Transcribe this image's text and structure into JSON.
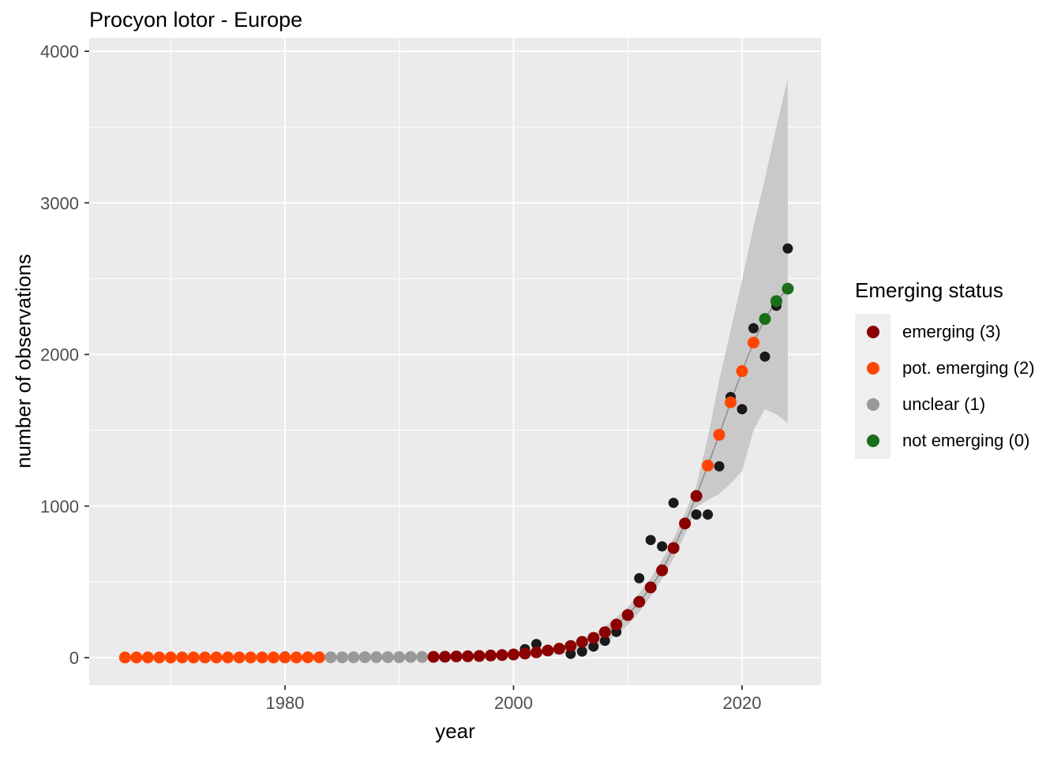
{
  "title": "Procyon lotor - Europe",
  "chart_data": {
    "type": "scatter",
    "title": "Procyon lotor - Europe",
    "xlabel": "year",
    "ylabel": "number of observations",
    "x_ticks": [
      1980,
      2000,
      2020
    ],
    "y_ticks": [
      0,
      1000,
      2000,
      3000,
      4000
    ],
    "x_domain": [
      1963,
      2027
    ],
    "y_domain": [
      -185,
      4090
    ],
    "grid": "white major and minor gridlines on gray panel",
    "panel_color": "#EBEBEB",
    "gridline_color": "#FFFFFF",
    "tick_label_color": "#4D4D4D",
    "legend": {
      "title": "Emerging status",
      "position": "right",
      "items": [
        {
          "label": "emerging (3)",
          "status": 3,
          "color": "#8B0000"
        },
        {
          "label": "pot. emerging (2)",
          "status": 2,
          "color": "#FF4500"
        },
        {
          "label": "unclear (1)",
          "status": 1,
          "color": "#999999"
        },
        {
          "label": "not emerging (0)",
          "status": 0,
          "color": "#1A6E1A"
        }
      ]
    },
    "status_colors": {
      "3": "#8B0000",
      "2": "#FF4500",
      "1": "#999999",
      "0": "#1A6E1A"
    },
    "series": {
      "fitted": {
        "name": "yearly fitted value colored by emerging status",
        "point_format": "[year, value, status]",
        "points": [
          [
            1966,
            1,
            2
          ],
          [
            1967,
            1,
            2
          ],
          [
            1968,
            1,
            2
          ],
          [
            1969,
            1,
            2
          ],
          [
            1970,
            1,
            2
          ],
          [
            1971,
            1,
            2
          ],
          [
            1972,
            1,
            2
          ],
          [
            1973,
            1,
            2
          ],
          [
            1974,
            1,
            2
          ],
          [
            1975,
            1,
            2
          ],
          [
            1976,
            1,
            2
          ],
          [
            1977,
            1,
            2
          ],
          [
            1978,
            1,
            2
          ],
          [
            1979,
            1,
            2
          ],
          [
            1980,
            1,
            2
          ],
          [
            1981,
            1,
            2
          ],
          [
            1982,
            2,
            2
          ],
          [
            1983,
            2,
            2
          ],
          [
            1984,
            2,
            1
          ],
          [
            1985,
            2,
            1
          ],
          [
            1986,
            2,
            1
          ],
          [
            1987,
            3,
            1
          ],
          [
            1988,
            3,
            1
          ],
          [
            1989,
            3,
            1
          ],
          [
            1990,
            3,
            1
          ],
          [
            1991,
            4,
            1
          ],
          [
            1992,
            4,
            1
          ],
          [
            1993,
            5,
            3
          ],
          [
            1994,
            6,
            3
          ],
          [
            1995,
            8,
            3
          ],
          [
            1996,
            9,
            3
          ],
          [
            1997,
            11,
            3
          ],
          [
            1998,
            14,
            3
          ],
          [
            1999,
            17,
            3
          ],
          [
            2000,
            21,
            3
          ],
          [
            2001,
            27,
            3
          ],
          [
            2002,
            35,
            3
          ],
          [
            2003,
            47,
            3
          ],
          [
            2004,
            59,
            3
          ],
          [
            2005,
            77,
            3
          ],
          [
            2006,
            104,
            3
          ],
          [
            2007,
            130,
            3
          ],
          [
            2008,
            168,
            3
          ],
          [
            2009,
            218,
            3
          ],
          [
            2010,
            281,
            3
          ],
          [
            2011,
            368,
            3
          ],
          [
            2012,
            463,
            3
          ],
          [
            2013,
            576,
            3
          ],
          [
            2014,
            723,
            3
          ],
          [
            2015,
            885,
            3
          ],
          [
            2016,
            1066,
            3
          ],
          [
            2017,
            1267,
            2
          ],
          [
            2018,
            1470,
            2
          ],
          [
            2019,
            1684,
            2
          ],
          [
            2020,
            1890,
            2
          ],
          [
            2021,
            2078,
            2
          ],
          [
            2022,
            2234,
            0
          ],
          [
            2023,
            2352,
            0
          ],
          [
            2024,
            2434,
            0
          ]
        ]
      },
      "observed": {
        "name": "observed yearly counts",
        "color": "#1A1A1A",
        "point_format": "[year, value]",
        "points": [
          [
            1980,
            8
          ],
          [
            2001,
            56
          ],
          [
            2002,
            90
          ],
          [
            2005,
            25
          ],
          [
            2006,
            40
          ],
          [
            2007,
            73
          ],
          [
            2008,
            111
          ],
          [
            2009,
            170
          ],
          [
            2011,
            524
          ],
          [
            2012,
            776
          ],
          [
            2013,
            734
          ],
          [
            2014,
            1021
          ],
          [
            2016,
            944
          ],
          [
            2017,
            944
          ],
          [
            2018,
            1262
          ],
          [
            2019,
            1719
          ],
          [
            2020,
            1639
          ],
          [
            2021,
            2173
          ],
          [
            2022,
            1986
          ],
          [
            2023,
            2321
          ],
          [
            2024,
            2699
          ]
        ]
      },
      "ribbon": {
        "name": "confidence band",
        "color": "#C9C9C9",
        "point_format": "[year, lower, upper]",
        "points": [
          [
            1966,
            0,
            5
          ],
          [
            1970,
            0,
            4
          ],
          [
            1975,
            0,
            4
          ],
          [
            1980,
            0,
            5
          ],
          [
            1985,
            0,
            7
          ],
          [
            1990,
            1,
            9
          ],
          [
            1995,
            2,
            13
          ],
          [
            1998,
            5,
            20
          ],
          [
            2000,
            8,
            30
          ],
          [
            2002,
            14,
            46
          ],
          [
            2004,
            25,
            72
          ],
          [
            2005,
            33,
            95
          ],
          [
            2006,
            45,
            122
          ],
          [
            2007,
            62,
            158
          ],
          [
            2008,
            98,
            205
          ],
          [
            2009,
            150,
            265
          ],
          [
            2010,
            215,
            333
          ],
          [
            2011,
            300,
            425
          ],
          [
            2012,
            403,
            524
          ],
          [
            2013,
            520,
            645
          ],
          [
            2014,
            655,
            785
          ],
          [
            2015,
            810,
            950
          ],
          [
            2016,
            993,
            1135
          ],
          [
            2017,
            1040,
            1450
          ],
          [
            2018,
            1080,
            1830
          ],
          [
            2019,
            1150,
            2160
          ],
          [
            2020,
            1230,
            2490
          ],
          [
            2021,
            1500,
            2840
          ],
          [
            2022,
            1640,
            3160
          ],
          [
            2023,
            1605,
            3500
          ],
          [
            2024,
            1548,
            3821
          ]
        ]
      },
      "trend_line_color": "#8C8C8C"
    }
  }
}
